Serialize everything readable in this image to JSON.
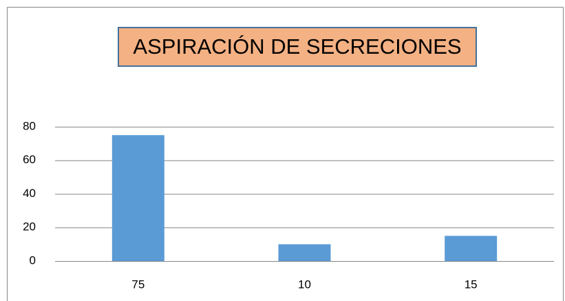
{
  "chart_data": {
    "type": "bar",
    "title": "ASPIRACIÓN DE SECRECIONES",
    "categories": [
      "75",
      "10",
      "15"
    ],
    "values": [
      75,
      10,
      15
    ],
    "color": "#5b9bd5",
    "ylim": [
      0,
      80
    ],
    "yticks": [
      0,
      20,
      40,
      60,
      80
    ],
    "grid": true
  }
}
